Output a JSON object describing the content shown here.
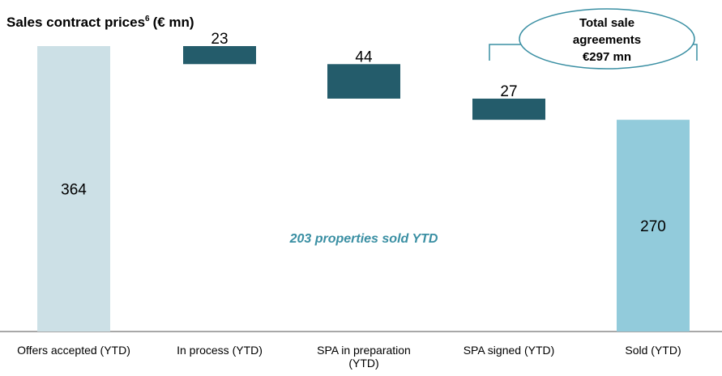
{
  "chart_data": {
    "type": "waterfall",
    "title": "Sales contract prices",
    "title_superscript": "6",
    "title_unit": "(€ mn)",
    "categories": [
      "Offers accepted (YTD)",
      "In process (YTD)",
      "SPA in preparation (YTD)",
      "SPA signed (YTD)",
      "Sold (YTD)"
    ],
    "values": [
      364,
      23,
      44,
      27,
      270
    ],
    "measure": [
      "absolute",
      "decrease",
      "decrease",
      "decrease",
      "total"
    ],
    "colors": [
      "#cce0e6",
      "#245c6b",
      "#245c6b",
      "#245c6b",
      "#92cbdb"
    ],
    "annotation": "203 properties sold YTD",
    "callout": [
      "Total sale",
      "agreements",
      "€297 mn"
    ]
  }
}
